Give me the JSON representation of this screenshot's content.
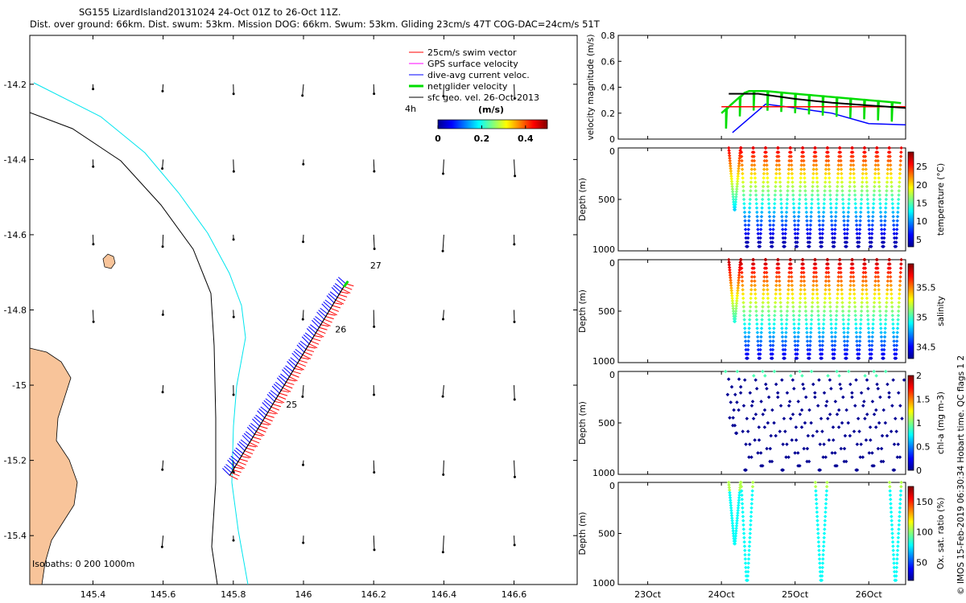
{
  "header": {
    "line1": "SG155 LizardIsland20131024 24-Oct 01Z to 26-Oct 11Z.",
    "line2": "Dist. over ground: 66km. Dist. swum: 53km. Mission DOG: 66km. Swum: 53km. Gliding 23cm/s 47T COG-DAC=24cm/s 51T"
  },
  "credit": "© IMOS 15-Feb-2019 06:30:34 Hobart time. QC flags 1 2",
  "colors": {
    "swim": "#ff0000",
    "gps": "#ff00ff",
    "dac": "#0000ff",
    "net": "#00dd00",
    "sfc": "#000000",
    "land": "#f8c49a",
    "isobath200": "#000000",
    "isobath1000": "#00e5ee"
  },
  "chart_data": [
    {
      "type": "map",
      "legend": [
        "25cm/s swim vector",
        "GPS surface velocity",
        "dive-avg current veloc.",
        "net glider velocity",
        "sfc geo. vel. 26-Oct-2013"
      ],
      "scale_label": "4h",
      "colorbar": {
        "title": "(m/s)",
        "ticks": [
          "0",
          "0.2",
          "0.4"
        ],
        "range": [
          0,
          0.5
        ]
      },
      "xlim": [
        145.22,
        146.78
      ],
      "ylim": [
        -15.53,
        -14.07
      ],
      "x_ticks": [
        "145.4",
        "145.6",
        "145.8",
        "146",
        "146.2",
        "146.4",
        "146.6"
      ],
      "y_ticks": [
        "-14.2",
        "-14.4",
        "-14.6",
        "-14.8",
        "-15",
        "-15.2",
        "-15.4"
      ],
      "day_labels": [
        {
          "text": "25",
          "lon": 145.95,
          "lat": -15.06
        },
        {
          "text": "26",
          "lon": 146.09,
          "lat": -14.86
        },
        {
          "text": "27",
          "lon": 146.19,
          "lat": -14.69
        }
      ],
      "isobath_label": "Isobaths: 0   200  1000m",
      "track": {
        "start": [
          145.79,
          -15.24
        ],
        "end": [
          146.12,
          -14.73
        ]
      }
    },
    {
      "type": "line",
      "ylabel": "velocity magnitude (m/s)",
      "ylim": [
        0,
        0.8
      ],
      "y_ticks": [
        "0",
        "0.2",
        "0.4",
        "0.6",
        "0.8"
      ],
      "x_range_days": [
        22.6,
        26.5
      ],
      "series": [
        {
          "name": "dive-avg current veloc.",
          "x": [
            24.15,
            24.6,
            25.0,
            25.5,
            26.0,
            26.5
          ],
          "y": [
            0.05,
            0.27,
            0.24,
            0.2,
            0.12,
            0.11
          ]
        },
        {
          "name": "net glider velocity",
          "x": [
            24.0,
            24.05,
            24.1,
            24.6,
            25.0,
            25.4,
            25.9,
            26.5
          ],
          "y": [
            0.05,
            0.2,
            0.3,
            0.37,
            0.37,
            0.37,
            0.3,
            0.28
          ]
        },
        {
          "name": "25cm/s swim vector",
          "x": [
            24.0,
            26.5
          ],
          "y": [
            0.25,
            0.25
          ]
        },
        {
          "name": "sfc geo. vel. 26-Oct-2013",
          "x": [
            24.1,
            24.5,
            25.0,
            25.5,
            26.0,
            26.5
          ],
          "y": [
            0.35,
            0.35,
            0.31,
            0.28,
            0.26,
            0.24
          ]
        }
      ]
    },
    {
      "type": "scatter",
      "ylabel": "Depth (m)",
      "ylim": [
        1000,
        0
      ],
      "y_ticks": [
        "0",
        "500",
        "1000"
      ],
      "clabel": "temperature (°C)",
      "c_ticks": [
        "5",
        "10",
        "15",
        "20",
        "25"
      ],
      "c_range": [
        3,
        29
      ]
    },
    {
      "type": "scatter",
      "ylabel": "Depth (m)",
      "ylim": [
        1000,
        0
      ],
      "y_ticks": [
        "0",
        "500",
        "1000"
      ],
      "clabel": "salinity",
      "c_ticks": [
        "34.5",
        "35",
        "35.5"
      ],
      "c_range": [
        34.3,
        35.9
      ]
    },
    {
      "type": "scatter",
      "ylabel": "Depth (m)",
      "ylim": [
        1000,
        0
      ],
      "y_ticks": [
        "0",
        "500",
        "1000"
      ],
      "clabel": "chl-a (mg m-3)",
      "c_ticks": [
        "0",
        "0.5",
        "1",
        "1.5",
        "2"
      ],
      "c_range": [
        0,
        2
      ]
    },
    {
      "type": "scatter",
      "ylabel": "Depth (m)",
      "ylim": [
        1000,
        0
      ],
      "y_ticks": [
        "0",
        "500",
        "1000"
      ],
      "clabel": "Ox. sat. ratio (%)",
      "c_ticks": [
        "50",
        "100",
        "150"
      ],
      "c_range": [
        20,
        175
      ],
      "x_ticks": [
        "23Oct",
        "24Oct",
        "25Oct",
        "26Oct"
      ]
    }
  ]
}
